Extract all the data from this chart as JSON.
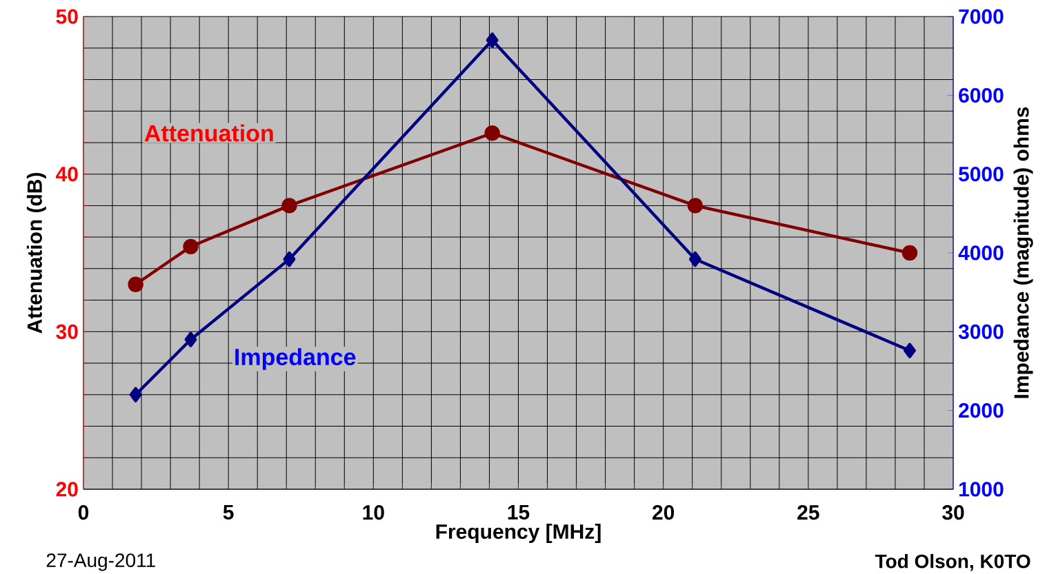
{
  "chart_data": {
    "type": "line",
    "xlabel": "Frequency [MHz]",
    "ylabel": "Attenuation (dB)",
    "y2label": "Impedance (magnitude) ohms",
    "xlim": [
      0,
      30
    ],
    "ylim": [
      20,
      50
    ],
    "y2lim": [
      1000,
      7000
    ],
    "xticks": [
      0,
      {
        "value": 1,
        "label": null
      },
      {
        "value": 2,
        "label": null
      },
      {
        "value": 3,
        "label": null
      },
      {
        "value": 4,
        "label": null
      },
      5,
      {
        "value": 6,
        "label": null
      },
      {
        "value": 7,
        "label": null
      },
      {
        "value": 8,
        "label": null
      },
      {
        "value": 9,
        "label": null
      },
      10,
      {
        "value": 11,
        "label": null
      },
      {
        "value": 12,
        "label": null
      },
      {
        "value": 13,
        "label": null
      },
      {
        "value": 14,
        "label": null
      },
      15,
      {
        "value": 16,
        "label": null
      },
      {
        "value": 17,
        "label": null
      },
      {
        "value": 18,
        "label": null
      },
      {
        "value": 19,
        "label": null
      },
      20,
      {
        "value": 21,
        "label": null
      },
      {
        "value": 22,
        "label": null
      },
      {
        "value": 23,
        "label": null
      },
      {
        "value": 24,
        "label": null
      },
      25,
      {
        "value": 26,
        "label": null
      },
      {
        "value": 27,
        "label": null
      },
      {
        "value": 28,
        "label": null
      },
      {
        "value": 29,
        "label": null
      },
      30
    ],
    "yticks": [
      20,
      {
        "value": 22,
        "label": null
      },
      {
        "value": 24,
        "label": null
      },
      {
        "value": 26,
        "label": null
      },
      {
        "value": 28,
        "label": null
      },
      30,
      {
        "value": 32,
        "label": null
      },
      {
        "value": 34,
        "label": null
      },
      {
        "value": 36,
        "label": null
      },
      {
        "value": 38,
        "label": null
      },
      40,
      {
        "value": 42,
        "label": null
      },
      {
        "value": 44,
        "label": null
      },
      {
        "value": 46,
        "label": null
      },
      {
        "value": 48,
        "label": null
      },
      50
    ],
    "y2ticks": [
      1000,
      2000,
      3000,
      4000,
      5000,
      6000,
      7000
    ],
    "grid": true,
    "series": [
      {
        "name": "Attenuation",
        "color": "#800000",
        "marker": "circle",
        "x": [
          1.8,
          3.7,
          7.1,
          14.1,
          21.1,
          28.5
        ],
        "values": [
          33.0,
          35.4,
          38.0,
          42.6,
          38.0,
          35.0
        ]
      },
      {
        "name": "Impedance",
        "color": "#000080",
        "marker": "diamond",
        "axis": "y2",
        "x": [
          1.8,
          3.7,
          7.1,
          14.1,
          21.1,
          28.5
        ],
        "values": [
          2200,
          2900,
          3920,
          6700,
          3920,
          2760
        ]
      }
    ],
    "annotations": [
      "27-Aug-2011",
      "Tod Olson, K0TO"
    ]
  }
}
